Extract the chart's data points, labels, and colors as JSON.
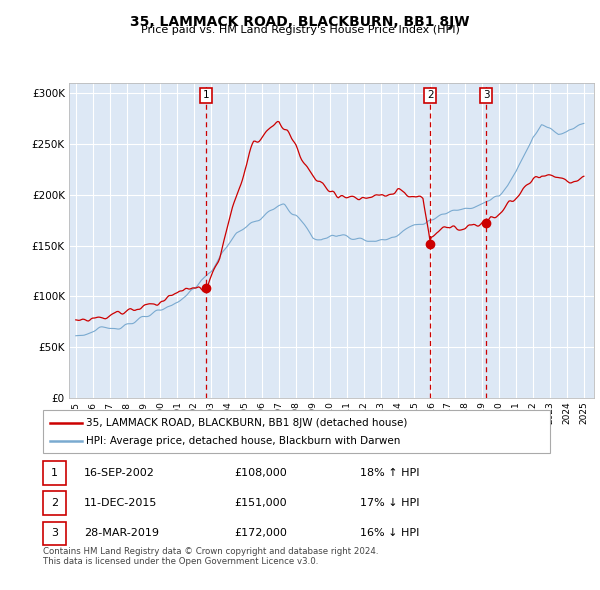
{
  "title": "35, LAMMACK ROAD, BLACKBURN, BB1 8JW",
  "subtitle": "Price paid vs. HM Land Registry's House Price Index (HPI)",
  "footer1": "Contains HM Land Registry data © Crown copyright and database right 2024.",
  "footer2": "This data is licensed under the Open Government Licence v3.0.",
  "legend_line1": "35, LAMMACK ROAD, BLACKBURN, BB1 8JW (detached house)",
  "legend_line2": "HPI: Average price, detached house, Blackburn with Darwen",
  "sale_color": "#cc0000",
  "hpi_color": "#7aaad0",
  "sale_events": [
    {
      "num": 1,
      "date": "16-SEP-2002",
      "price": "£108,000",
      "pct": "18%",
      "dir": "↑"
    },
    {
      "num": 2,
      "date": "11-DEC-2015",
      "price": "£151,000",
      "pct": "17%",
      "dir": "↓"
    },
    {
      "num": 3,
      "date": "28-MAR-2019",
      "price": "£172,000",
      "pct": "16%",
      "dir": "↓"
    }
  ],
  "sale_dates_decimal": [
    2002.71,
    2015.94,
    2019.24
  ],
  "sale_prices": [
    108000,
    151000,
    172000
  ],
  "ylim": [
    0,
    310000
  ],
  "yticks": [
    0,
    50000,
    100000,
    150000,
    200000,
    250000,
    300000
  ],
  "background_color": "#dde8f5",
  "hpi_keypoints": [
    [
      1995.0,
      62000
    ],
    [
      1995.5,
      63000
    ],
    [
      1996.0,
      65000
    ],
    [
      1997.0,
      69000
    ],
    [
      1998.0,
      73000
    ],
    [
      1999.0,
      78000
    ],
    [
      2000.0,
      85000
    ],
    [
      2001.0,
      95000
    ],
    [
      2002.0,
      108000
    ],
    [
      2003.0,
      125000
    ],
    [
      2003.5,
      138000
    ],
    [
      2004.0,
      152000
    ],
    [
      2004.5,
      162000
    ],
    [
      2005.0,
      168000
    ],
    [
      2005.5,
      172000
    ],
    [
      2006.0,
      178000
    ],
    [
      2006.5,
      183000
    ],
    [
      2007.0,
      188000
    ],
    [
      2007.3,
      190000
    ],
    [
      2007.6,
      185000
    ],
    [
      2008.0,
      180000
    ],
    [
      2008.5,
      170000
    ],
    [
      2009.0,
      158000
    ],
    [
      2009.5,
      155000
    ],
    [
      2010.0,
      158000
    ],
    [
      2010.5,
      162000
    ],
    [
      2011.0,
      160000
    ],
    [
      2011.5,
      157000
    ],
    [
      2012.0,
      155000
    ],
    [
      2012.5,
      154000
    ],
    [
      2013.0,
      155000
    ],
    [
      2013.5,
      158000
    ],
    [
      2014.0,
      162000
    ],
    [
      2014.5,
      166000
    ],
    [
      2015.0,
      170000
    ],
    [
      2015.5,
      172000
    ],
    [
      2016.0,
      175000
    ],
    [
      2016.5,
      178000
    ],
    [
      2017.0,
      182000
    ],
    [
      2017.5,
      185000
    ],
    [
      2018.0,
      188000
    ],
    [
      2018.5,
      190000
    ],
    [
      2019.0,
      192000
    ],
    [
      2019.5,
      195000
    ],
    [
      2020.0,
      198000
    ],
    [
      2020.5,
      208000
    ],
    [
      2021.0,
      222000
    ],
    [
      2021.5,
      240000
    ],
    [
      2022.0,
      258000
    ],
    [
      2022.5,
      268000
    ],
    [
      2023.0,
      265000
    ],
    [
      2023.5,
      260000
    ],
    [
      2024.0,
      262000
    ],
    [
      2024.5,
      268000
    ],
    [
      2025.0,
      272000
    ]
  ],
  "prop_keypoints": [
    [
      1995.0,
      76000
    ],
    [
      1995.5,
      77000
    ],
    [
      1996.0,
      79000
    ],
    [
      1996.5,
      80000
    ],
    [
      1997.0,
      82000
    ],
    [
      1997.5,
      84000
    ],
    [
      1998.0,
      86000
    ],
    [
      1998.5,
      88000
    ],
    [
      1999.0,
      90000
    ],
    [
      1999.5,
      93000
    ],
    [
      2000.0,
      96000
    ],
    [
      2000.5,
      100000
    ],
    [
      2001.0,
      103000
    ],
    [
      2001.5,
      106000
    ],
    [
      2002.0,
      108000
    ],
    [
      2002.71,
      108000
    ],
    [
      2003.0,
      118000
    ],
    [
      2003.5,
      138000
    ],
    [
      2004.0,
      168000
    ],
    [
      2004.5,
      200000
    ],
    [
      2005.0,
      228000
    ],
    [
      2005.5,
      248000
    ],
    [
      2006.0,
      258000
    ],
    [
      2006.5,
      265000
    ],
    [
      2007.0,
      270000
    ],
    [
      2007.2,
      268000
    ],
    [
      2007.5,
      262000
    ],
    [
      2008.0,
      248000
    ],
    [
      2008.5,
      232000
    ],
    [
      2009.0,
      218000
    ],
    [
      2009.5,
      208000
    ],
    [
      2010.0,
      205000
    ],
    [
      2010.5,
      200000
    ],
    [
      2011.0,
      198000
    ],
    [
      2011.5,
      196000
    ],
    [
      2012.0,
      195000
    ],
    [
      2012.5,
      196000
    ],
    [
      2013.0,
      198000
    ],
    [
      2013.5,
      200000
    ],
    [
      2014.0,
      202000
    ],
    [
      2014.5,
      200000
    ],
    [
      2015.0,
      198000
    ],
    [
      2015.5,
      195000
    ],
    [
      2015.94,
      151000
    ],
    [
      2016.0,
      158000
    ],
    [
      2016.5,
      165000
    ],
    [
      2017.0,
      170000
    ],
    [
      2017.5,
      168000
    ],
    [
      2018.0,
      168000
    ],
    [
      2018.5,
      170000
    ],
    [
      2019.0,
      172000
    ],
    [
      2019.24,
      172000
    ],
    [
      2019.5,
      178000
    ],
    [
      2020.0,
      182000
    ],
    [
      2020.5,
      188000
    ],
    [
      2021.0,
      196000
    ],
    [
      2021.5,
      205000
    ],
    [
      2022.0,
      215000
    ],
    [
      2022.5,
      220000
    ],
    [
      2023.0,
      218000
    ],
    [
      2023.5,
      215000
    ],
    [
      2024.0,
      212000
    ],
    [
      2024.5,
      214000
    ],
    [
      2025.0,
      216000
    ]
  ]
}
